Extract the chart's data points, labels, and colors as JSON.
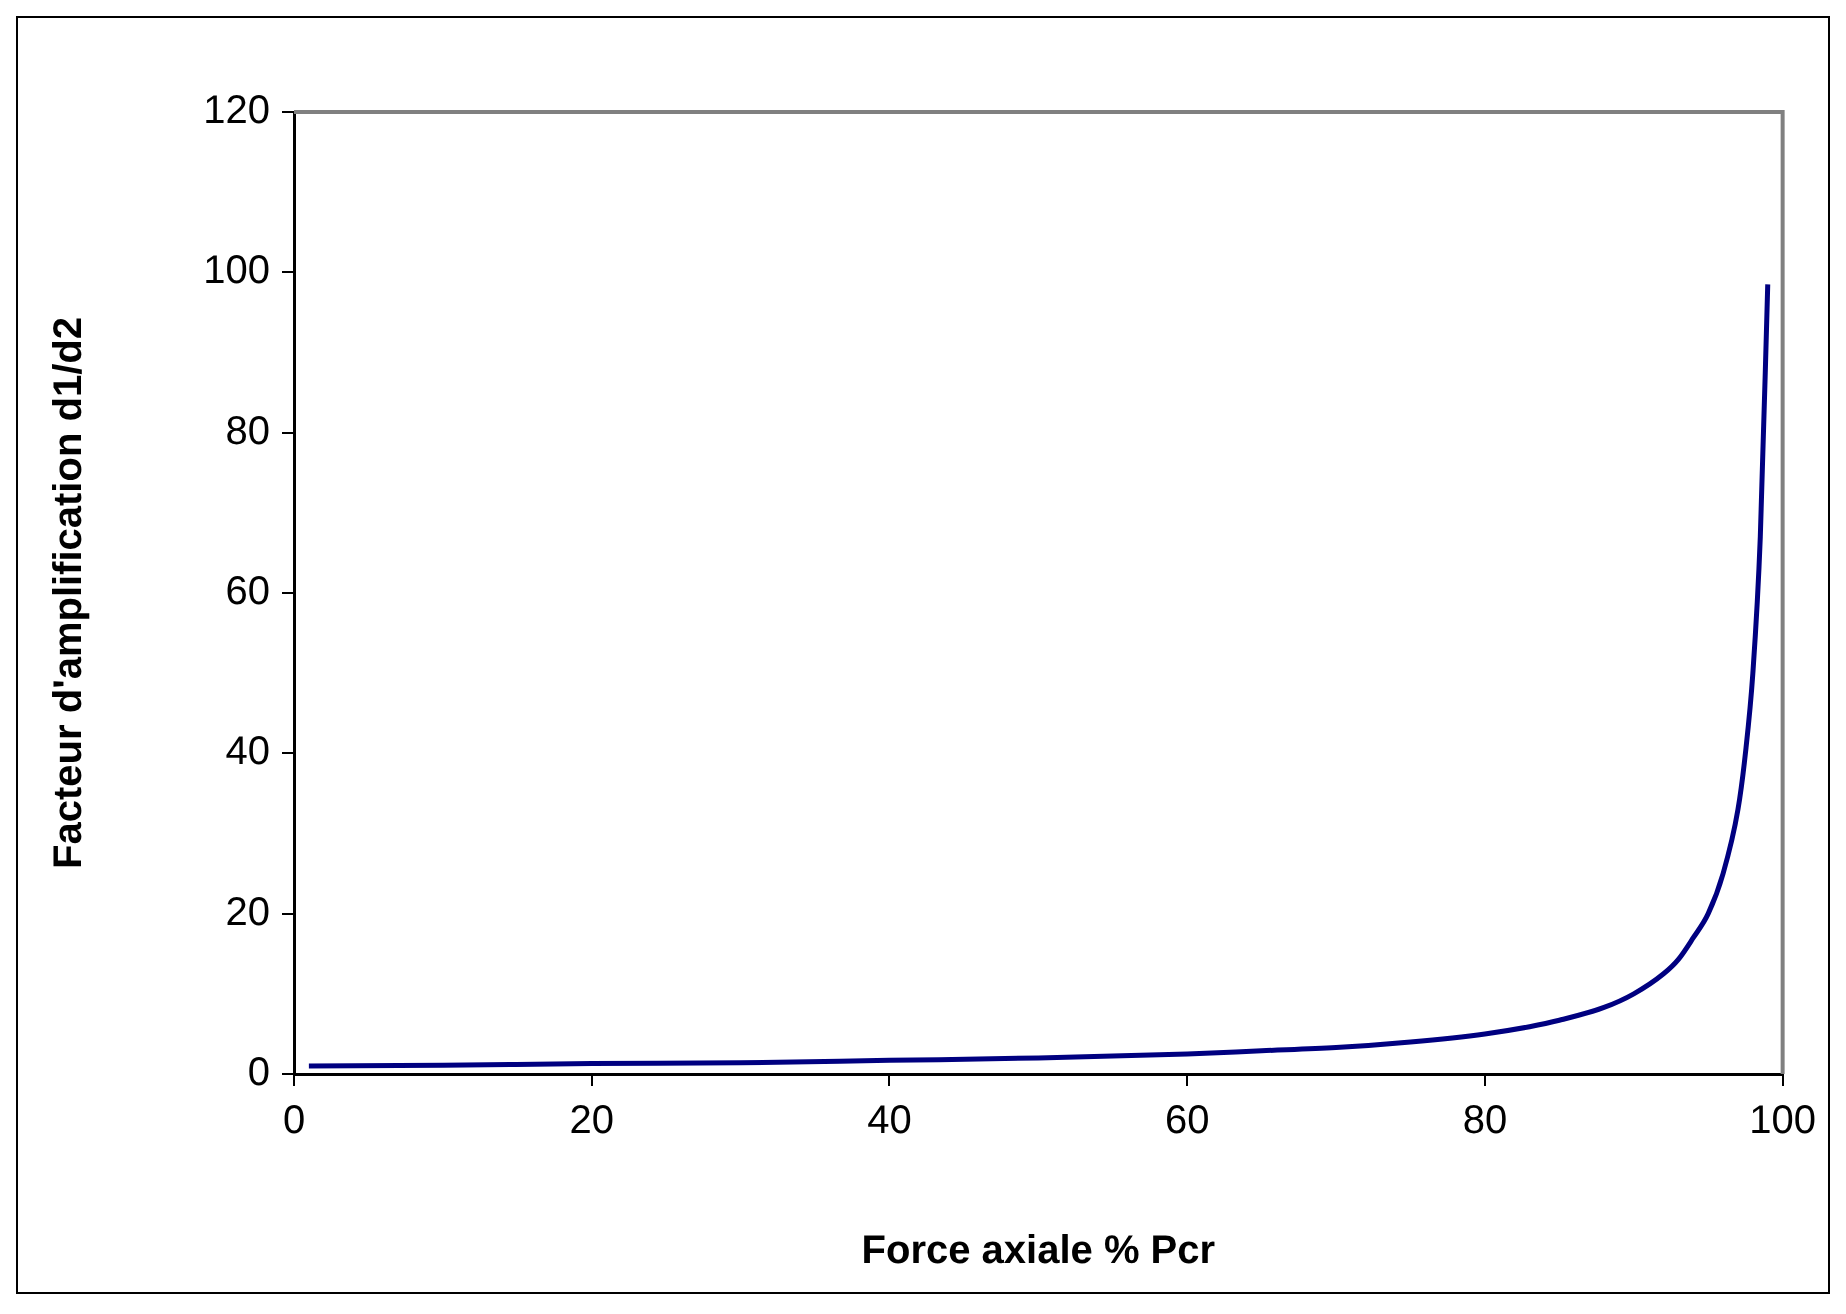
{
  "chart_data": {
    "type": "line",
    "xlabel": "Force axiale % Pcr",
    "ylabel": "Facteur d'amplification d1/d2",
    "x": [
      1,
      10,
      20,
      30,
      40,
      50,
      60,
      65,
      70,
      75,
      80,
      83,
      85,
      88,
      90,
      92,
      93,
      94,
      95,
      96,
      97,
      97.5,
      98,
      98.5,
      99
    ],
    "series": [
      {
        "color": "#000080",
        "values": [
          1.0,
          1.1,
          1.3,
          1.4,
          1.7,
          2,
          2.5,
          2.9,
          3.3,
          4,
          5,
          5.9,
          6.7,
          8.3,
          10,
          12.5,
          14.3,
          17,
          20,
          25,
          33,
          40,
          50,
          67,
          98.5
        ]
      }
    ],
    "xlim": [
      0,
      100
    ],
    "xticks": [
      0,
      20,
      40,
      60,
      80,
      100
    ],
    "ylim": [
      0,
      120
    ],
    "yticks": [
      0,
      20,
      40,
      60,
      80,
      100,
      120
    ],
    "grid": false,
    "legend": false,
    "marker": "none",
    "line_style": "solid"
  }
}
